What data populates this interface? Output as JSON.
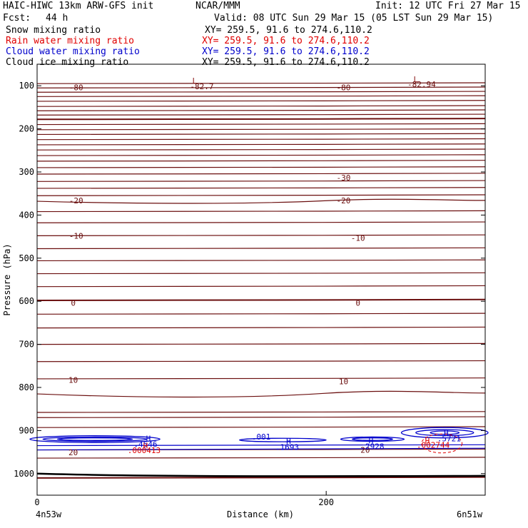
{
  "header": {
    "model": "HAIC-HIWC 13km ARW-GFS init",
    "org": "NCAR/MMM",
    "init": "Init: 12 UTC Fri 27 Mar 15",
    "fcst_label": "Fcst:",
    "fcst_value": "44 h",
    "valid": "Valid: 08 UTC Sun 29 Mar 15 (05 LST Sun 29 Mar 15)"
  },
  "fields": [
    {
      "name": "Snow mixing ratio",
      "xy": "XY= 259.5, 91.6 to 274.6,110.2",
      "color": "#000000"
    },
    {
      "name": "Rain water mixing ratio",
      "xy": "XY= 259.5, 91.6 to 274.6,110.2",
      "color": "#e00000"
    },
    {
      "name": "Cloud water mixing ratio",
      "xy": "XY= 259.5, 91.6 to 274.6,110.2",
      "color": "#0000cc"
    },
    {
      "name": "Cloud ice mixing ratio",
      "xy": "XY= 259.5, 91.6 to 274.6,110.2",
      "color": "#000000"
    }
  ],
  "chart_data": {
    "type": "cross-section",
    "xlabel": "Distance (km)",
    "ylabel": "Pressure (hPa)",
    "xlim": [
      0,
      310
    ],
    "ylim": [
      1050,
      50
    ],
    "x_ticks": [
      0,
      200
    ],
    "y_ticks": [
      100,
      200,
      300,
      400,
      500,
      600,
      700,
      800,
      900,
      1000
    ],
    "endpoints": {
      "left": "4n53w",
      "right": "6n51w"
    },
    "temperature_isotherm_labels": [
      {
        "text": "-80",
        "x": 27,
        "p": 104
      },
      {
        "text": "-82.7",
        "x": 114,
        "p": 101
      },
      {
        "text": "-80",
        "x": 212,
        "p": 104
      },
      {
        "text": "-82.94",
        "x": 266,
        "p": 96
      },
      {
        "text": "-30",
        "x": 212,
        "p": 313
      },
      {
        "text": "-20",
        "x": 27,
        "p": 366
      },
      {
        "text": "-20",
        "x": 212,
        "p": 366
      },
      {
        "text": "-10",
        "x": 27,
        "p": 448
      },
      {
        "text": "-10",
        "x": 222,
        "p": 453
      },
      {
        "text": "0",
        "x": 25,
        "p": 604
      },
      {
        "text": "0",
        "x": 222,
        "p": 604
      },
      {
        "text": "10",
        "x": 25,
        "p": 783
      },
      {
        "text": "10",
        "x": 212,
        "p": 786
      },
      {
        "text": "20",
        "x": 25,
        "p": 951
      },
      {
        "text": "20",
        "x": 227,
        "p": 945
      }
    ],
    "extrema": [
      {
        "text": "L",
        "x": 109,
        "p": 88,
        "color": "#8b1a1a"
      },
      {
        "text": "L",
        "x": 262,
        "p": 85,
        "color": "#8b1a1a"
      },
      {
        "text": "H",
        "x": 77,
        "p": 918,
        "color": "#0000cc"
      },
      {
        "text": ".4546",
        "x": 75,
        "p": 932,
        "color": "#0000cc"
      },
      {
        "text": "H",
        "x": 75,
        "p": 935,
        "color": "#e00000"
      },
      {
        "text": ".000413",
        "x": 74,
        "p": 946,
        "color": "#e00000"
      },
      {
        "text": ".001",
        "x": 155,
        "p": 914,
        "color": "#0000cc"
      },
      {
        "text": "H",
        "x": 174,
        "p": 924,
        "color": "#0000cc"
      },
      {
        "text": ".1693",
        "x": 173,
        "p": 938,
        "color": "#0000cc"
      },
      {
        "text": "H",
        "x": 231,
        "p": 923,
        "color": "#0000cc"
      },
      {
        "text": ".2928",
        "x": 232,
        "p": 937,
        "color": "#0000cc"
      },
      {
        "text": "H",
        "x": 283,
        "p": 906,
        "color": "#0000cc"
      },
      {
        "text": ".5721",
        "x": 285,
        "p": 918,
        "color": "#0000cc"
      },
      {
        "text": "H",
        "x": 270,
        "p": 923,
        "color": "#e00000"
      },
      {
        "text": ".002744",
        "x": 274,
        "p": 933,
        "color": "#e00000"
      }
    ]
  }
}
